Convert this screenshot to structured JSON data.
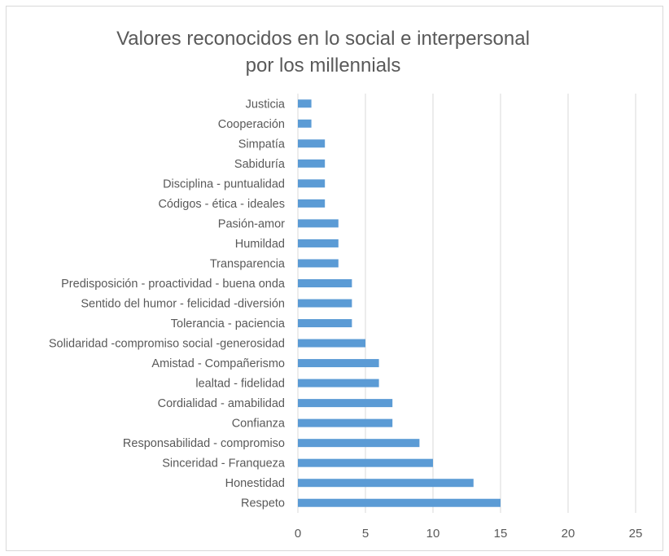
{
  "chart_data": {
    "type": "bar",
    "orientation": "horizontal",
    "title": [
      "Valores reconocidos en lo social e interpersonal",
      "por los millennials"
    ],
    "categories": [
      "Justicia",
      "Cooperación",
      "Simpatía",
      "Sabiduría",
      "Disciplina - puntualidad",
      "Códigos - ética - ideales",
      "Pasión-amor",
      "Humildad",
      "Transparencia",
      "Predisposición - proactividad - buena onda",
      "Sentido del humor - felicidad -diversión",
      "Tolerancia - paciencia",
      "Solidaridad -compromiso social -generosidad",
      "Amistad - Compañerismo",
      "lealtad - fidelidad",
      "Cordialidad - amabilidad",
      "Confianza",
      "Responsabilidad - compromiso",
      "Sinceridad - Franqueza",
      "Honestidad",
      "Respeto"
    ],
    "values": [
      1,
      1,
      2,
      2,
      2,
      2,
      3,
      3,
      3,
      4,
      4,
      4,
      5,
      6,
      6,
      7,
      7,
      9,
      10,
      13,
      15
    ],
    "xlim": [
      0,
      25
    ],
    "xticks": [
      "0",
      "5",
      "10",
      "15",
      "20",
      "25"
    ],
    "grid": true,
    "bar_color": "#5b9bd5",
    "legend": "none"
  }
}
